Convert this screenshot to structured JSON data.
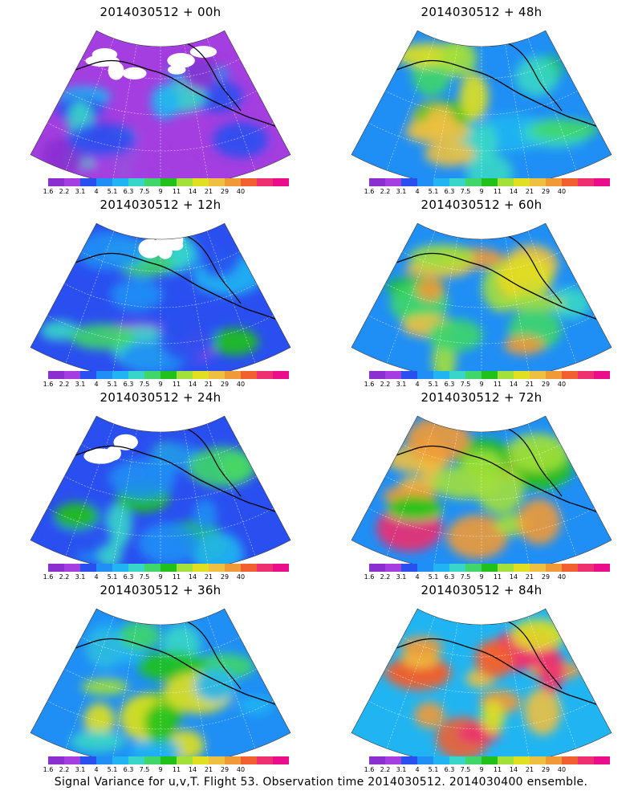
{
  "caption": "Signal Variance for u,v,T. Flight 53. Observation time 2014030512. 2014030400 ensemble.",
  "colorbar": {
    "labels": [
      "1.6",
      "2.2",
      "3.1",
      "4",
      "5.1",
      "6.3",
      "7.5",
      "9",
      "11",
      "14",
      "21",
      "29",
      "40"
    ],
    "colors": [
      "#8b2fd0",
      "#a43ee0",
      "#2a4ff0",
      "#1f8ff5",
      "#20b5f2",
      "#37d6c8",
      "#3fd66a",
      "#1fc21a",
      "#a2e03a",
      "#e0e020",
      "#eec040",
      "#f09a37",
      "#f06030",
      "#ee2f70",
      "#ec0d8c"
    ]
  },
  "panels": [
    {
      "id": "p00",
      "title": "2014030512 + 00h",
      "level": 0.15,
      "white": 0.35
    },
    {
      "id": "p12",
      "title": "2014030512 + 12h",
      "level": 0.25,
      "white": 0.25
    },
    {
      "id": "p24",
      "title": "2014030512 + 24h",
      "level": 0.35,
      "white": 0.15
    },
    {
      "id": "p36",
      "title": "2014030512 + 36h",
      "level": 0.5,
      "white": 0.0
    },
    {
      "id": "p48",
      "title": "2014030512 + 48h",
      "level": 0.55,
      "white": 0.0
    },
    {
      "id": "p60",
      "title": "2014030512 + 60h",
      "level": 0.65,
      "white": 0.0
    },
    {
      "id": "p72",
      "title": "2014030512 + 72h",
      "level": 0.75,
      "white": 0.0
    },
    {
      "id": "p84",
      "title": "2014030512 + 84h",
      "level": 0.85,
      "white": 0.0
    }
  ]
}
